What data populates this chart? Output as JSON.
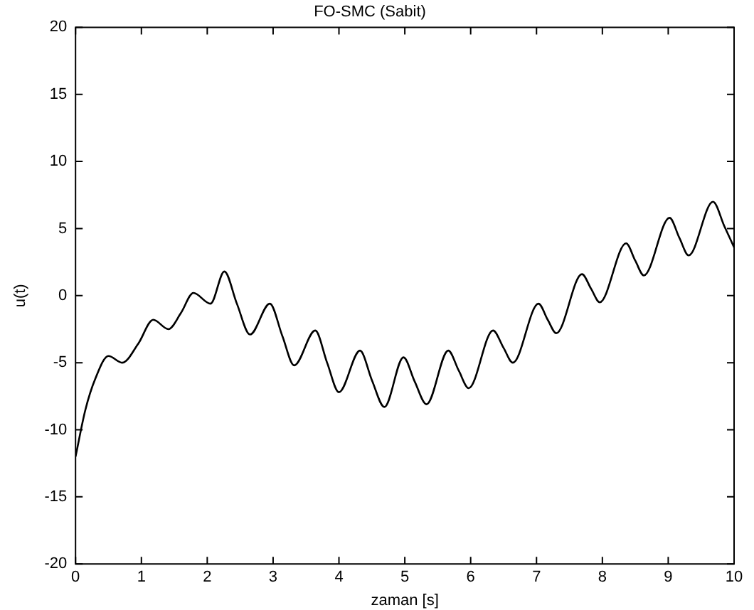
{
  "chart_data": {
    "type": "line",
    "title": "FO-SMC (Sabit)",
    "xlabel": "zaman [s]",
    "ylabel": "u(t)",
    "x": [
      0,
      0.15,
      0.3,
      0.5,
      0.71,
      0.95,
      1.18,
      1.41,
      1.6,
      1.79,
      2.05,
      2.26,
      2.45,
      2.65,
      2.95,
      3.14,
      3.32,
      3.64,
      3.82,
      4.0,
      4.32,
      4.5,
      4.69,
      4.98,
      5.15,
      5.33,
      5.66,
      5.82,
      5.97,
      6.34,
      6.5,
      6.64,
      7.03,
      7.17,
      7.3,
      7.69,
      7.83,
      7.96,
      8.36,
      8.5,
      8.63,
      9.02,
      9.17,
      9.31,
      9.68,
      9.85,
      10
    ],
    "values": [
      -12,
      -8.5,
      -6.2,
      -4.5,
      -5.0,
      -3.6,
      -1.8,
      -2.5,
      -1.3,
      0.2,
      -0.6,
      1.8,
      -0.6,
      -2.9,
      -0.6,
      -3.0,
      -5.2,
      -2.6,
      -5.0,
      -7.2,
      -4.1,
      -6.3,
      -8.3,
      -4.6,
      -6.4,
      -8.1,
      -4.1,
      -5.6,
      -6.9,
      -2.6,
      -3.9,
      -5.0,
      -0.6,
      -1.8,
      -2.8,
      1.6,
      0.5,
      -0.5,
      3.9,
      2.6,
      1.5,
      5.8,
      4.3,
      3.0,
      7.0,
      5.2,
      3.6
    ],
    "color": "#000000",
    "xlim": [
      0,
      10
    ],
    "xticks": [
      0,
      1,
      2,
      3,
      4,
      5,
      6,
      7,
      8,
      9,
      10
    ],
    "ylim": [
      -20,
      20
    ],
    "yticks": [
      -20,
      -15,
      -10,
      -5,
      0,
      5,
      10,
      15,
      20
    ],
    "grid": false,
    "legend": false,
    "marker": "none",
    "line_style": "solid"
  }
}
